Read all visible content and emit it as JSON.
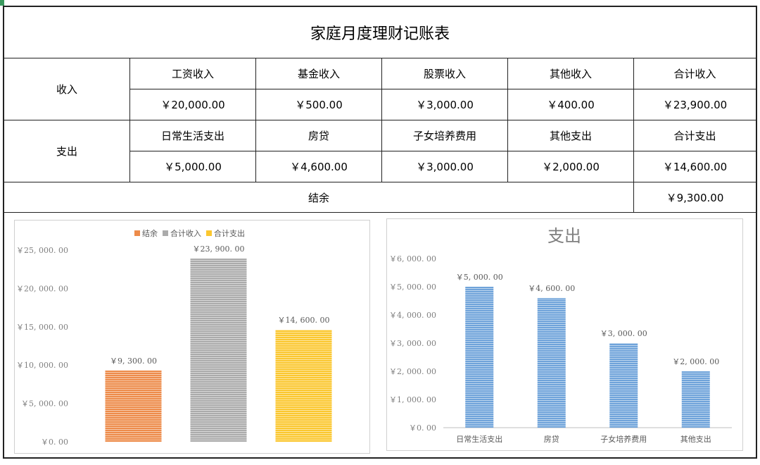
{
  "table": {
    "title": "家庭月度理财记账表",
    "income": {
      "label": "收入",
      "headers": [
        "工资收入",
        "基金收入",
        "股票收入",
        "其他收入",
        "合计收入"
      ],
      "values": [
        "￥20,000.00",
        "￥500.00",
        "￥3,000.00",
        "￥400.00",
        "￥23,900.00"
      ]
    },
    "expense": {
      "label": "支出",
      "headers": [
        "日常生活支出",
        "房贷",
        "子女培养费用",
        "其他支出",
        "合计支出"
      ],
      "values": [
        "￥5,000.00",
        "￥4,600.00",
        "￥3,000.00",
        "￥2,000.00",
        "￥14,600.00"
      ]
    },
    "balance": {
      "label": "结余",
      "value": "￥9,300.00"
    }
  },
  "chart_data": [
    {
      "type": "bar",
      "title": "",
      "legend_position": "top-center",
      "categories": [
        "结余",
        "合计收入",
        "合计支出"
      ],
      "values": [
        9300,
        23900,
        14600
      ],
      "value_labels": [
        "￥9, 300. 00",
        "￥23, 900. 00",
        "￥14, 600. 00"
      ],
      "colors": [
        "#ED8B4A",
        "#ABABAB",
        "#FBC72F"
      ],
      "legend": [
        "结余",
        "合计收入",
        "合计支出"
      ],
      "ylim": [
        0,
        25000
      ],
      "y_ticks": [
        0,
        5000,
        10000,
        15000,
        20000,
        25000
      ],
      "y_tick_labels": [
        "￥0. 00",
        "￥5, 000. 00",
        "￥10, 000. 00",
        "￥15, 000. 00",
        "￥20, 000. 00",
        "￥25, 000. 00"
      ],
      "grid": false
    },
    {
      "type": "bar",
      "title": "支出",
      "categories": [
        "日常生活支出",
        "房贷",
        "子女培养费用",
        "其他支出"
      ],
      "values": [
        5000,
        4600,
        3000,
        2000
      ],
      "value_labels": [
        "￥5, 000. 00",
        "￥4, 600. 00",
        "￥3, 000. 00",
        "￥2, 000. 00"
      ],
      "color": "#6FA3DA",
      "ylim": [
        0,
        6000
      ],
      "y_ticks": [
        0,
        1000,
        2000,
        3000,
        4000,
        5000,
        6000
      ],
      "y_tick_labels": [
        "￥0. 00",
        "￥1, 000. 00",
        "￥2, 000. 00",
        "￥3, 000. 00",
        "￥4, 000. 00",
        "￥5, 000. 00",
        "￥6, 000. 00"
      ],
      "grid": false
    }
  ]
}
